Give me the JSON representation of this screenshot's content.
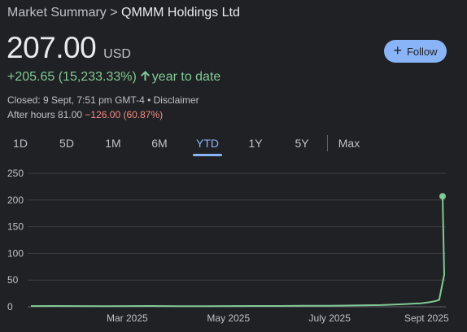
{
  "breadcrumb": {
    "prefix": "Market Summary",
    "separator": ">",
    "company": "QMMM Holdings Ltd"
  },
  "quote": {
    "price": "207.00",
    "currency": "USD",
    "change": "+205.65 (15,233.33%)",
    "period_label": "year to date",
    "closed_text": "Closed: 9 Sept, 7:51 pm GMT-4 • Disclaimer",
    "after_hours_label": "After hours 81.00",
    "after_hours_change": "−126.00 (60.87%)"
  },
  "follow_button": {
    "label": "Follow"
  },
  "tabs": [
    {
      "label": "1D",
      "active": false
    },
    {
      "label": "5D",
      "active": false
    },
    {
      "label": "1M",
      "active": false
    },
    {
      "label": "6M",
      "active": false
    },
    {
      "label": "YTD",
      "active": true
    },
    {
      "label": "1Y",
      "active": false
    },
    {
      "label": "5Y",
      "active": false
    },
    {
      "label": "Max",
      "active": false
    }
  ],
  "colors": {
    "positive": "#81c995",
    "negative": "#f28b82",
    "accent": "#8ab4f8",
    "background": "#202124",
    "grid": "#3c4043"
  },
  "chart_data": {
    "type": "line",
    "title": "",
    "xlabel": "",
    "ylabel": "",
    "yticks": [
      0,
      50,
      100,
      150,
      200,
      250
    ],
    "ylim": [
      0,
      250
    ],
    "xtick_labels": [
      {
        "label": "Mar 2025",
        "date": "2025-03-01"
      },
      {
        "label": "May 2025",
        "date": "2025-05-01"
      },
      {
        "label": "July 2025",
        "date": "2025-07-01"
      },
      {
        "label": "Sept 2025",
        "date": "2025-09-01"
      }
    ],
    "xlim": [
      "2025-01-01",
      "2025-09-09"
    ],
    "grid": true,
    "series": [
      {
        "name": "",
        "points": [
          [
            "2025-01-02",
            1.4
          ],
          [
            "2025-01-15",
            1.5
          ],
          [
            "2025-02-01",
            1.3
          ],
          [
            "2025-02-15",
            1.2
          ],
          [
            "2025-03-01",
            1.3
          ],
          [
            "2025-03-15",
            1.6
          ],
          [
            "2025-04-01",
            1.2
          ],
          [
            "2025-04-15",
            1.1
          ],
          [
            "2025-05-01",
            1.3
          ],
          [
            "2025-05-15",
            1.5
          ],
          [
            "2025-06-01",
            1.6
          ],
          [
            "2025-06-15",
            1.8
          ],
          [
            "2025-07-01",
            1.9
          ],
          [
            "2025-07-15",
            2.4
          ],
          [
            "2025-08-01",
            3.2
          ],
          [
            "2025-08-15",
            5.0
          ],
          [
            "2025-08-25",
            6.5
          ],
          [
            "2025-08-31",
            9.0
          ],
          [
            "2025-09-03",
            11.0
          ],
          [
            "2025-09-05",
            13.0
          ],
          [
            "2025-09-08",
            60.0
          ],
          [
            "2025-09-09",
            207.0
          ]
        ]
      }
    ]
  }
}
